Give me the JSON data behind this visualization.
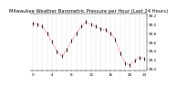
{
  "title": "Milwaukee Weather Barometric Pressure per Hour (Last 24 Hours)",
  "hours": [
    0,
    1,
    2,
    3,
    4,
    5,
    6,
    7,
    8,
    9,
    10,
    11,
    12,
    13,
    14,
    15,
    16,
    17,
    18,
    19,
    20,
    21,
    22,
    23
  ],
  "pressure": [
    30.02,
    30.0,
    29.95,
    29.8,
    29.6,
    29.38,
    29.28,
    29.42,
    29.62,
    29.8,
    29.95,
    30.05,
    30.0,
    29.95,
    29.9,
    29.88,
    29.8,
    29.65,
    29.35,
    29.12,
    29.08,
    29.18,
    29.25,
    29.22
  ],
  "ylim": [
    28.95,
    30.25
  ],
  "ytick_vals": [
    29.0,
    29.2,
    29.4,
    29.6,
    29.8,
    30.0,
    30.2
  ],
  "ytick_labels": [
    "29.0",
    "29.2",
    "29.4",
    "29.6",
    "29.8",
    "30.0",
    "30.2"
  ],
  "line_color": "#ff0000",
  "marker_color": "#000000",
  "bg_color": "#ffffff",
  "grid_color": "#999999",
  "title_color": "#000000",
  "title_fontsize": 3.8,
  "tick_fontsize": 3.0,
  "xtick_labels": [
    "0",
    "",
    "",
    "",
    "4",
    "",
    "",
    "",
    "8",
    "",
    "",
    "",
    "12",
    "",
    "",
    "",
    "16",
    "",
    "",
    "",
    "20",
    "",
    "",
    "23"
  ]
}
